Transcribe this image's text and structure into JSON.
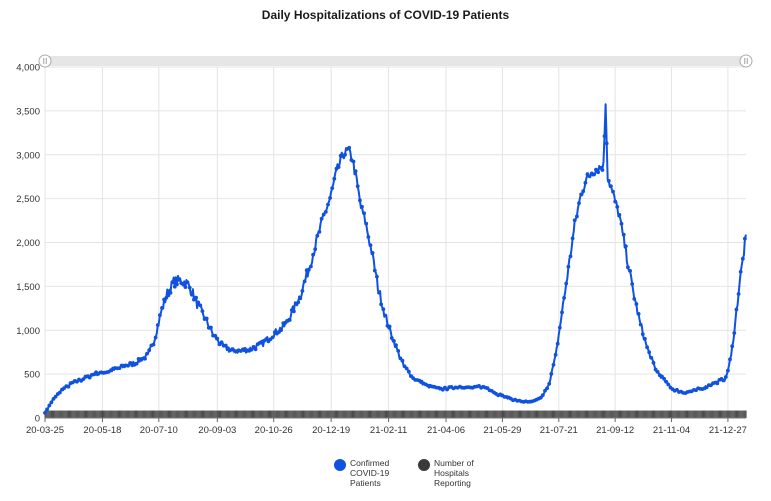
{
  "colors": {
    "series_confirmed": "#1052e0",
    "series_hospitals": "#3a3a3a",
    "grid": "#e4e4e4",
    "scrollbar": "#e6e6e6"
  },
  "chart_data": {
    "type": "line",
    "title": "Daily Hospitalizations of COVID-19 Patients",
    "xlabel": "",
    "ylabel": "",
    "x_range": [
      "2020-03-25",
      "2022-01-13"
    ],
    "ylim": [
      0,
      4000
    ],
    "y_ticks": [
      "0",
      "500",
      "1,000",
      "1,500",
      "2,000",
      "2,500",
      "3,000",
      "3,500",
      "4,000"
    ],
    "x_ticks": [
      "20-03-25",
      "20-05-18",
      "20-07-10",
      "20-09-03",
      "20-10-26",
      "20-12-19",
      "21-02-11",
      "21-04-06",
      "21-05-29",
      "21-07-21",
      "21-09-12",
      "21-11-04",
      "21-12-27"
    ],
    "grid": true,
    "legend_position": "bottom",
    "series": [
      {
        "name": "Confirmed COVID-19 Patients",
        "type": "line",
        "points": [
          [
            "2020-03-25",
            60
          ],
          [
            "2020-04-01",
            200
          ],
          [
            "2020-04-10",
            320
          ],
          [
            "2020-04-20",
            400
          ],
          [
            "2020-05-01",
            450
          ],
          [
            "2020-05-10",
            500
          ],
          [
            "2020-05-20",
            520
          ],
          [
            "2020-06-01",
            560
          ],
          [
            "2020-06-10",
            600
          ],
          [
            "2020-06-20",
            640
          ],
          [
            "2020-06-30",
            720
          ],
          [
            "2020-07-06",
            900
          ],
          [
            "2020-07-12",
            1200
          ],
          [
            "2020-07-18",
            1420
          ],
          [
            "2020-07-24",
            1550
          ],
          [
            "2020-07-30",
            1570
          ],
          [
            "2020-08-05",
            1540
          ],
          [
            "2020-08-10",
            1450
          ],
          [
            "2020-08-15",
            1300
          ],
          [
            "2020-08-22",
            1150
          ],
          [
            "2020-08-30",
            950
          ],
          [
            "2020-09-07",
            830
          ],
          [
            "2020-09-15",
            770
          ],
          [
            "2020-09-25",
            760
          ],
          [
            "2020-10-05",
            790
          ],
          [
            "2020-10-15",
            840
          ],
          [
            "2020-10-25",
            950
          ],
          [
            "2020-11-05",
            1050
          ],
          [
            "2020-11-12",
            1200
          ],
          [
            "2020-11-20",
            1400
          ],
          [
            "2020-11-28",
            1700
          ],
          [
            "2020-12-05",
            2000
          ],
          [
            "2020-12-12",
            2300
          ],
          [
            "2020-12-18",
            2500
          ],
          [
            "2020-12-24",
            2800
          ],
          [
            "2020-12-30",
            3000
          ],
          [
            "2021-01-04",
            3050
          ],
          [
            "2021-01-08",
            2950
          ],
          [
            "2021-01-12",
            2700
          ],
          [
            "2021-01-16",
            2400
          ],
          [
            "2021-01-20",
            2250
          ],
          [
            "2021-01-26",
            1900
          ],
          [
            "2021-02-01",
            1500
          ],
          [
            "2021-02-08",
            1150
          ],
          [
            "2021-02-15",
            900
          ],
          [
            "2021-02-25",
            600
          ],
          [
            "2021-03-07",
            450
          ],
          [
            "2021-03-20",
            360
          ],
          [
            "2021-04-01",
            330
          ],
          [
            "2021-04-10",
            340
          ],
          [
            "2021-04-20",
            360
          ],
          [
            "2021-04-30",
            340
          ],
          [
            "2021-05-08",
            360
          ],
          [
            "2021-05-15",
            340
          ],
          [
            "2021-05-25",
            270
          ],
          [
            "2021-06-05",
            220
          ],
          [
            "2021-06-15",
            190
          ],
          [
            "2021-06-25",
            180
          ],
          [
            "2021-07-05",
            230
          ],
          [
            "2021-07-12",
            400
          ],
          [
            "2021-07-18",
            700
          ],
          [
            "2021-07-24",
            1200
          ],
          [
            "2021-07-30",
            1700
          ],
          [
            "2021-08-05",
            2200
          ],
          [
            "2021-08-10",
            2500
          ],
          [
            "2021-08-15",
            2700
          ],
          [
            "2021-08-21",
            2800
          ],
          [
            "2021-08-27",
            2850
          ],
          [
            "2021-09-01",
            2880
          ],
          [
            "2021-09-03",
            3600
          ],
          [
            "2021-09-05",
            2750
          ],
          [
            "2021-09-10",
            2550
          ],
          [
            "2021-09-16",
            2300
          ],
          [
            "2021-09-22",
            1900
          ],
          [
            "2021-09-28",
            1500
          ],
          [
            "2021-10-05",
            1100
          ],
          [
            "2021-10-12",
            800
          ],
          [
            "2021-10-20",
            550
          ],
          [
            "2021-10-28",
            430
          ],
          [
            "2021-11-05",
            330
          ],
          [
            "2021-11-15",
            290
          ],
          [
            "2021-11-25",
            310
          ],
          [
            "2021-12-05",
            350
          ],
          [
            "2021-12-15",
            400
          ],
          [
            "2021-12-25",
            450
          ],
          [
            "2021-12-30",
            700
          ],
          [
            "2022-01-03",
            1100
          ],
          [
            "2022-01-07",
            1550
          ],
          [
            "2022-01-10",
            1800
          ],
          [
            "2022-01-13",
            2090
          ]
        ]
      },
      {
        "name": "Number of Hospitals Reporting",
        "type": "column",
        "value": 85,
        "x_range": [
          "2020-03-25",
          "2022-01-13"
        ]
      }
    ]
  },
  "legend": {
    "items": [
      {
        "label_lines": [
          "Confirmed",
          "COVID-19",
          "Patients"
        ]
      },
      {
        "label_lines": [
          "Number of",
          "Hospitals",
          "Reporting"
        ]
      }
    ]
  }
}
